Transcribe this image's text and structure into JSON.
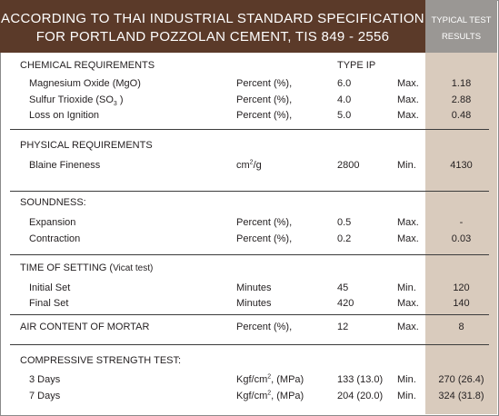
{
  "header": {
    "title_line1": "ACCORDING TO THAI INDUSTRIAL STANDARD SPECIFICATION",
    "title_line2": "FOR PORTLAND POZZOLAN CEMENT, TIS 849 - 2556",
    "results_line1": "TYPICAL TEST",
    "results_line2": "RESULTS"
  },
  "chemical": {
    "heading": "CHEMICAL REQUIREMENTS",
    "type_label": "TYPE IP",
    "rows": [
      {
        "name": "Magnesium Oxide (MgO)",
        "unit": "Percent (%),",
        "value": "6.0",
        "limit": "Max.",
        "result": "1.18"
      },
      {
        "name_prefix": "Sulfur Trioxide (SO",
        "name_sub": "3",
        "name_suffix": " )",
        "unit": "Percent (%),",
        "value": "4.0",
        "limit": "Max.",
        "result": "2.88"
      },
      {
        "name": "Loss on Ignition",
        "unit": "Percent (%),",
        "value": "5.0",
        "limit": "Max.",
        "result": "0.48"
      }
    ]
  },
  "physical": {
    "heading": "PHYSICAL REQUIREMENTS",
    "rows": [
      {
        "name": "Blaine Fineness",
        "unit_prefix": "cm",
        "unit_sup": "2",
        "unit_suffix": "/g",
        "value": "2800",
        "limit": "Min.",
        "result": "4130"
      }
    ]
  },
  "soundness": {
    "heading": "SOUNDNESS:",
    "rows": [
      {
        "name": "Expansion",
        "unit": "Percent (%),",
        "value": "0.5",
        "limit": "Max.",
        "result": "-"
      },
      {
        "name": "Contraction",
        "unit": "Percent (%),",
        "value": "0.2",
        "limit": "Max.",
        "result": "0.03"
      }
    ]
  },
  "setting": {
    "heading": "TIME OF SETTING (",
    "heading_note": "Vicat test)",
    "rows": [
      {
        "name": "Initial Set",
        "unit": "Minutes",
        "value": "45",
        "limit": "Min.",
        "result": "120"
      },
      {
        "name": "Final Set",
        "unit": "Minutes",
        "value": "420",
        "limit": "Max.",
        "result": "140"
      }
    ]
  },
  "air": {
    "heading": "AIR CONTENT OF MORTAR",
    "unit": "Percent (%),",
    "value": "12",
    "limit": "Max.",
    "result": "8"
  },
  "compressive": {
    "heading": "COMPRESSIVE STRENGTH TEST:",
    "rows": [
      {
        "name": "3 Days",
        "unit_prefix": "Kgf/cm",
        "unit_sup": "2",
        "unit_suffix": ", (MPa)",
        "value": "133 (13.0)",
        "limit": "Min.",
        "result": "270 (26.4)"
      },
      {
        "name": "7 Days",
        "unit_prefix": "Kgf/cm",
        "unit_sup": "2",
        "unit_suffix": ", (MPa)",
        "value": "204 (20.0)",
        "limit": "Min.",
        "result": "324 (31.8)"
      }
    ]
  },
  "colors": {
    "header_bg": "#5b3a29",
    "results_header_bg": "#9a9794",
    "results_column_bg": "#d9cbbd"
  }
}
